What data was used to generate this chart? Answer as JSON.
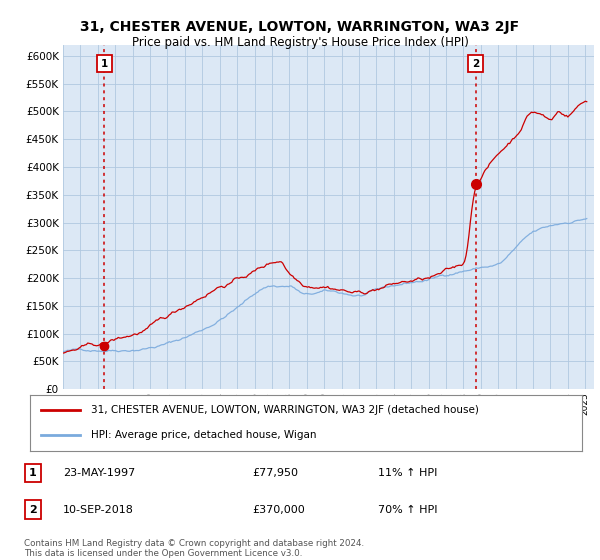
{
  "title": "31, CHESTER AVENUE, LOWTON, WARRINGTON, WA3 2JF",
  "subtitle": "Price paid vs. HM Land Registry's House Price Index (HPI)",
  "ylabel_ticks": [
    "£0",
    "£50K",
    "£100K",
    "£150K",
    "£200K",
    "£250K",
    "£300K",
    "£350K",
    "£400K",
    "£450K",
    "£500K",
    "£550K",
    "£600K"
  ],
  "ytick_values": [
    0,
    50000,
    100000,
    150000,
    200000,
    250000,
    300000,
    350000,
    400000,
    450000,
    500000,
    550000,
    600000
  ],
  "sale_color": "#cc0000",
  "hpi_color": "#7aaadd",
  "legend_sale_label": "31, CHESTER AVENUE, LOWTON, WARRINGTON, WA3 2JF (detached house)",
  "legend_hpi_label": "HPI: Average price, detached house, Wigan",
  "table_rows": [
    {
      "num": "1",
      "date": "23-MAY-1997",
      "price": "£77,950",
      "hpi": "11% ↑ HPI"
    },
    {
      "num": "2",
      "date": "10-SEP-2018",
      "price": "£370,000",
      "hpi": "70% ↑ HPI"
    }
  ],
  "footnote": "Contains HM Land Registry data © Crown copyright and database right 2024.\nThis data is licensed under the Open Government Licence v3.0.",
  "plot_bg_color": "#dce8f5",
  "grid_color": "#b0c8e0",
  "xlim_start": 1995.0,
  "xlim_end": 2025.5,
  "ylim": [
    0,
    620000
  ],
  "sale1_year": 1997.38,
  "sale1_price": 77950,
  "sale2_year": 2018.7,
  "sale2_price": 370000
}
